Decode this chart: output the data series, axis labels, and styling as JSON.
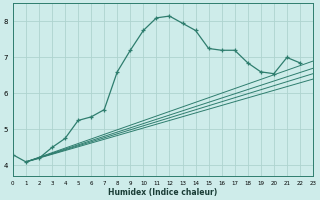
{
  "xlabel": "Humidex (Indice chaleur)",
  "bg_color": "#ceecea",
  "line_color": "#2e7d6e",
  "grid_color": "#aed4cf",
  "x_min": 0,
  "x_max": 23,
  "y_min": 3.7,
  "y_max": 8.5,
  "yticks": [
    4,
    5,
    6,
    7,
    8
  ],
  "xticks": [
    0,
    1,
    2,
    3,
    4,
    5,
    6,
    7,
    8,
    9,
    10,
    11,
    12,
    13,
    14,
    15,
    16,
    17,
    18,
    19,
    20,
    21,
    22,
    23
  ],
  "curve_x": [
    0,
    1,
    2,
    3,
    4,
    5,
    6,
    7,
    8,
    9,
    10,
    11,
    12,
    13,
    14,
    15,
    16,
    17,
    18,
    19,
    20,
    21,
    22
  ],
  "curve_y": [
    4.3,
    4.1,
    4.2,
    4.5,
    4.75,
    5.25,
    5.35,
    5.55,
    6.6,
    7.2,
    7.75,
    8.1,
    8.15,
    7.95,
    7.75,
    7.25,
    7.2,
    7.2,
    6.85,
    6.6,
    6.55,
    7.0,
    6.85
  ],
  "fan_lines": [
    {
      "x": [
        1,
        23
      ],
      "y": [
        4.1,
        6.9
      ]
    },
    {
      "x": [
        1,
        23
      ],
      "y": [
        4.1,
        6.7
      ]
    },
    {
      "x": [
        1,
        23
      ],
      "y": [
        4.1,
        6.55
      ]
    },
    {
      "x": [
        1,
        23
      ],
      "y": [
        4.1,
        6.4
      ]
    }
  ]
}
